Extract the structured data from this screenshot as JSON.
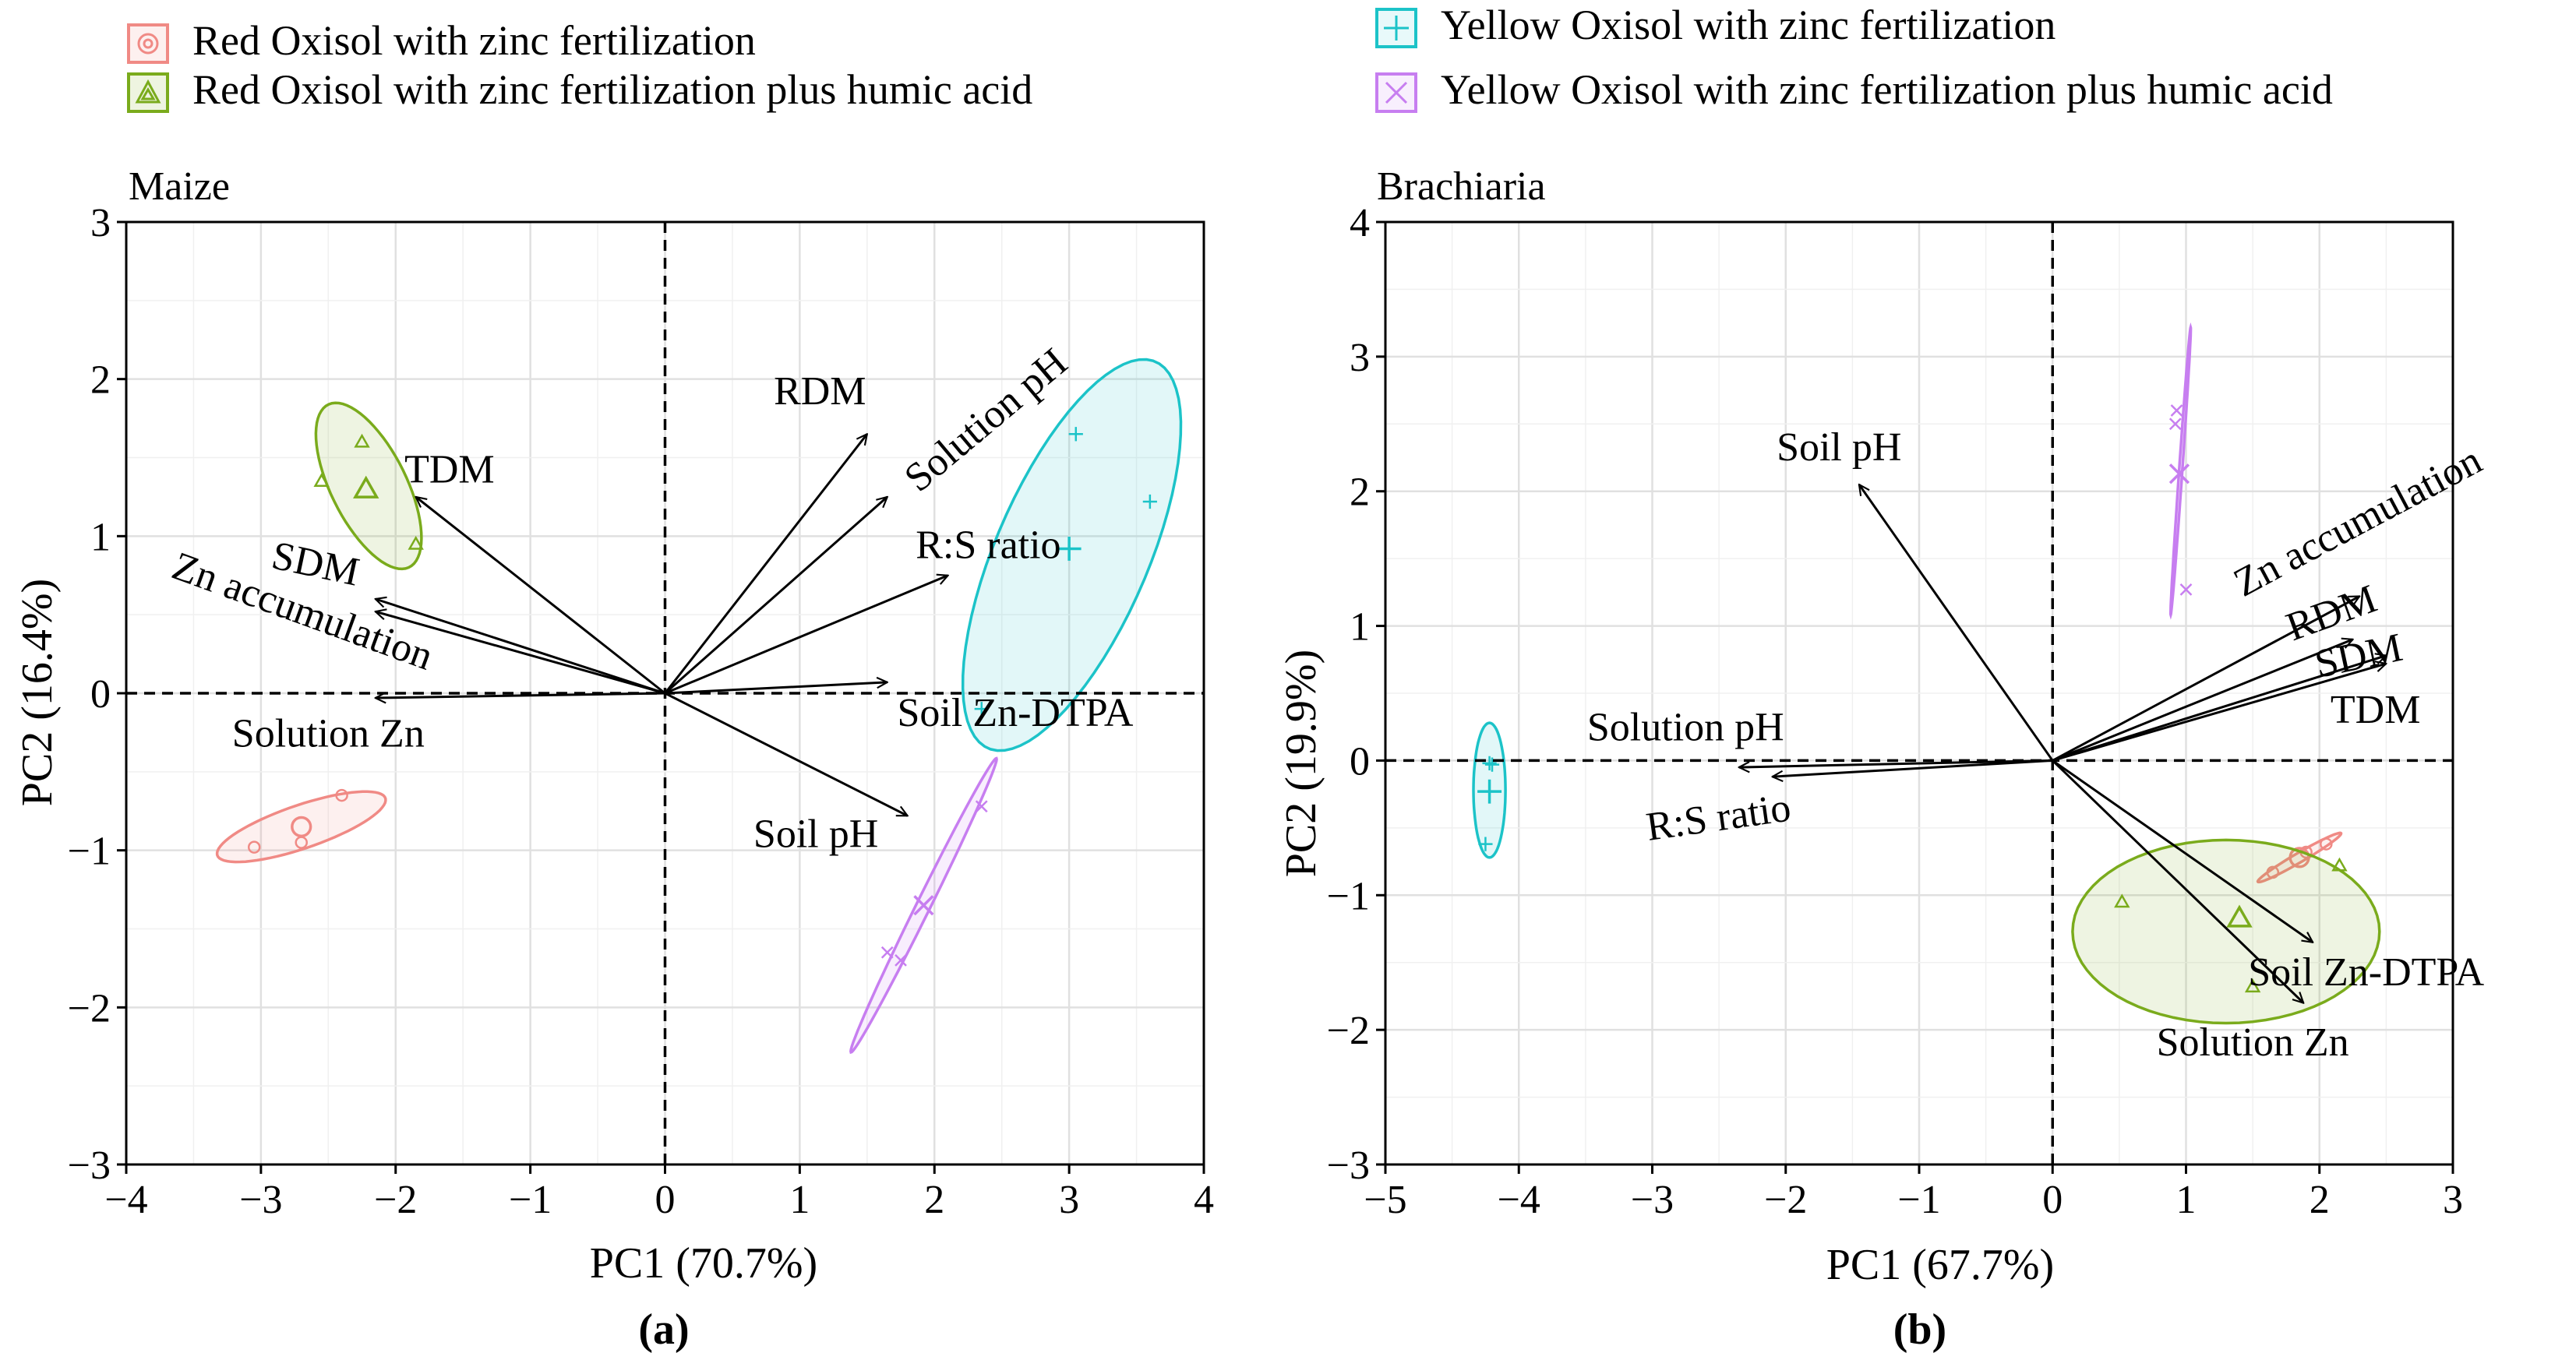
{
  "legend": {
    "items": [
      {
        "label": "Red Oxisol with zinc fertilization",
        "color": "#f08a85",
        "marker": "circle"
      },
      {
        "label": "Red Oxisol with zinc fertilization plus humic acid",
        "color": "#7aab1c",
        "marker": "triangle"
      },
      {
        "label": "Yellow Oxisol with zinc fertilization",
        "color": "#1cc3c8",
        "marker": "plus"
      },
      {
        "label": "Yellow Oxisol with zinc fertilization plus humic acid",
        "color": "#c77ef0",
        "marker": "cross"
      }
    ]
  },
  "chart_data": [
    {
      "type": "scatter",
      "panel_label": "(a)",
      "title": "Maize",
      "xlabel": "PC1 (70.7%)",
      "ylabel": "PC2 (16.4%)",
      "xlim": [
        -4,
        4
      ],
      "ylim": [
        -3,
        3
      ],
      "xticks": [
        -4,
        -3,
        -2,
        -1,
        0,
        1,
        2,
        3,
        4
      ],
      "yticks": [
        -3,
        -2,
        -1,
        0,
        1,
        2,
        3
      ],
      "grid": true,
      "groups": [
        {
          "name": "Red Oxisol with zinc fertilization",
          "color": "#f08a85",
          "marker": "circle",
          "points": [
            [
              -3.05,
              -0.98
            ],
            [
              -2.7,
              -0.95
            ],
            [
              -2.4,
              -0.65
            ]
          ],
          "centroid": [
            -2.7,
            -0.85
          ],
          "ellipse": {
            "center": [
              -2.7,
              -0.85
            ],
            "rx": 0.65,
            "ry": 0.14,
            "angle": 16
          }
        },
        {
          "name": "Red Oxisol with zinc fertilization plus humic acid",
          "color": "#7aab1c",
          "marker": "triangle",
          "points": [
            [
              -2.55,
              1.35
            ],
            [
              -2.25,
              1.6
            ],
            [
              -1.85,
              0.95
            ]
          ],
          "centroid": [
            -2.22,
            1.3
          ],
          "ellipse": {
            "center": [
              -2.2,
              1.32
            ],
            "rx": 0.6,
            "ry": 0.27,
            "angle": -58
          }
        },
        {
          "name": "Yellow Oxisol with zinc fertilization",
          "color": "#1cc3c8",
          "marker": "plus",
          "points": [
            [
              3.05,
              1.65
            ],
            [
              3.6,
              1.22
            ],
            [
              2.35,
              -0.1
            ]
          ],
          "centroid": [
            3.0,
            0.92
          ],
          "ellipse": {
            "center": [
              3.02,
              0.88
            ],
            "rx": 1.38,
            "ry": 0.55,
            "angle": 62
          }
        },
        {
          "name": "Yellow Oxisol with zinc fertilization plus humic acid",
          "color": "#c77ef0",
          "marker": "cross",
          "points": [
            [
              1.65,
              -1.65
            ],
            [
              1.75,
              -1.7
            ],
            [
              2.35,
              -0.72
            ]
          ],
          "centroid": [
            1.92,
            -1.35
          ],
          "ellipse": {
            "center": [
              1.92,
              -1.35
            ],
            "rx": 1.08,
            "ry": 0.05,
            "angle": 60
          }
        }
      ],
      "loadings": [
        {
          "label": "RDM",
          "x": 1.5,
          "y": 1.65,
          "label_x": 1.15,
          "label_y": 1.9,
          "rotate": 0
        },
        {
          "label": "Solution pH",
          "x": 1.65,
          "y": 1.25,
          "label_x": 2.4,
          "label_y": 1.72,
          "rotate": -40
        },
        {
          "label": "R:S ratio",
          "x": 2.1,
          "y": 0.75,
          "label_x": 2.4,
          "label_y": 0.92,
          "rotate": 0
        },
        {
          "label": "Soil Zn-DTPA",
          "x": 1.65,
          "y": 0.07,
          "label_x": 2.6,
          "label_y": -0.15,
          "rotate": 0
        },
        {
          "label": "Soil pH",
          "x": 1.8,
          "y": -0.78,
          "label_x": 1.12,
          "label_y": -0.92,
          "rotate": 0
        },
        {
          "label": "TDM",
          "x": -1.85,
          "y": 1.25,
          "label_x": -1.6,
          "label_y": 1.4,
          "rotate": 0
        },
        {
          "label": "SDM",
          "x": -2.15,
          "y": 0.6,
          "label_x": -2.6,
          "label_y": 0.8,
          "rotate": 12
        },
        {
          "label": "Zn accumulation",
          "x": -2.15,
          "y": 0.52,
          "label_x": -2.7,
          "label_y": 0.5,
          "rotate": 20
        },
        {
          "label": "Solution Zn",
          "x": -2.15,
          "y": -0.03,
          "label_x": -2.5,
          "label_y": -0.28,
          "rotate": 0
        }
      ]
    },
    {
      "type": "scatter",
      "panel_label": "(b)",
      "title": "Brachiaria",
      "xlabel": "PC1 (67.7%)",
      "ylabel": "PC2 (19.9%)",
      "xlim": [
        -5,
        3
      ],
      "ylim": [
        -3,
        4
      ],
      "xticks": [
        -5,
        -4,
        -3,
        -2,
        -1,
        0,
        1,
        2,
        3
      ],
      "yticks": [
        -3,
        -2,
        -1,
        0,
        1,
        2,
        3,
        4
      ],
      "grid": true,
      "groups": [
        {
          "name": "Red Oxisol with zinc fertilization",
          "color": "#f08a85",
          "marker": "circle",
          "points": [
            [
              1.65,
              -0.83
            ],
            [
              1.9,
              -0.68
            ],
            [
              2.05,
              -0.62
            ]
          ],
          "centroid": [
            1.85,
            -0.72
          ],
          "ellipse": {
            "center": [
              1.85,
              -0.72
            ],
            "rx": 0.36,
            "ry": 0.035,
            "angle": 30
          }
        },
        {
          "name": "Red Oxisol with zinc fertilization plus humic acid",
          "color": "#7aab1c",
          "marker": "triangle",
          "points": [
            [
              0.52,
              -1.05
            ],
            [
              1.5,
              -1.68
            ],
            [
              2.15,
              -0.78
            ]
          ],
          "centroid": [
            1.4,
            -1.17
          ],
          "ellipse": {
            "center": [
              1.3,
              -1.27
            ],
            "rx": 1.15,
            "ry": 0.68,
            "angle": 0
          }
        },
        {
          "name": "Yellow Oxisol with zinc fertilization",
          "color": "#1cc3c8",
          "marker": "plus",
          "points": [
            [
              -4.2,
              -0.03
            ],
            [
              -4.25,
              -0.62
            ],
            [
              -4.22,
              -0.02
            ]
          ],
          "centroid": [
            -4.22,
            -0.23
          ],
          "ellipse": {
            "center": [
              -4.22,
              -0.22
            ],
            "rx": 0.12,
            "ry": 0.5,
            "angle": 0
          }
        },
        {
          "name": "Yellow Oxisol with zinc fertilization plus humic acid",
          "color": "#c77ef0",
          "marker": "cross",
          "points": [
            [
              0.93,
              2.6
            ],
            [
              0.92,
              2.5
            ],
            [
              1.0,
              1.27
            ]
          ],
          "centroid": [
            0.95,
            2.13
          ],
          "ellipse": {
            "center": [
              0.96,
              2.15
            ],
            "rx": 1.07,
            "ry": 0.012,
            "angle": 86
          }
        }
      ],
      "loadings": [
        {
          "label": "Soil pH",
          "x": -1.45,
          "y": 2.05,
          "label_x": -1.6,
          "label_y": 2.3,
          "rotate": 0
        },
        {
          "label": "Zn accumulation",
          "x": 2.3,
          "y": 1.22,
          "label_x": 2.3,
          "label_y": 1.75,
          "rotate": -28
        },
        {
          "label": "RDM",
          "x": 2.25,
          "y": 0.9,
          "label_x": 2.1,
          "label_y": 1.07,
          "rotate": -20
        },
        {
          "label": "SDM",
          "x": 2.5,
          "y": 0.78,
          "label_x": 2.3,
          "label_y": 0.75,
          "rotate": -12
        },
        {
          "label": "TDM",
          "x": 2.5,
          "y": 0.72,
          "label_x": 2.42,
          "label_y": 0.35,
          "rotate": 0
        },
        {
          "label": "Soil Zn-DTPA",
          "x": 1.95,
          "y": -1.35,
          "label_x": 2.35,
          "label_y": -1.6,
          "rotate": 0
        },
        {
          "label": "Solution Zn",
          "x": 1.88,
          "y": -1.8,
          "label_x": 1.5,
          "label_y": -2.12,
          "rotate": 0
        },
        {
          "label": "Solution pH",
          "x": -2.35,
          "y": -0.05,
          "label_x": -2.75,
          "label_y": 0.22,
          "rotate": 0
        },
        {
          "label": "R:S ratio",
          "x": -2.1,
          "y": -0.12,
          "label_x": -2.5,
          "label_y": -0.45,
          "rotate": -8
        }
      ]
    }
  ]
}
